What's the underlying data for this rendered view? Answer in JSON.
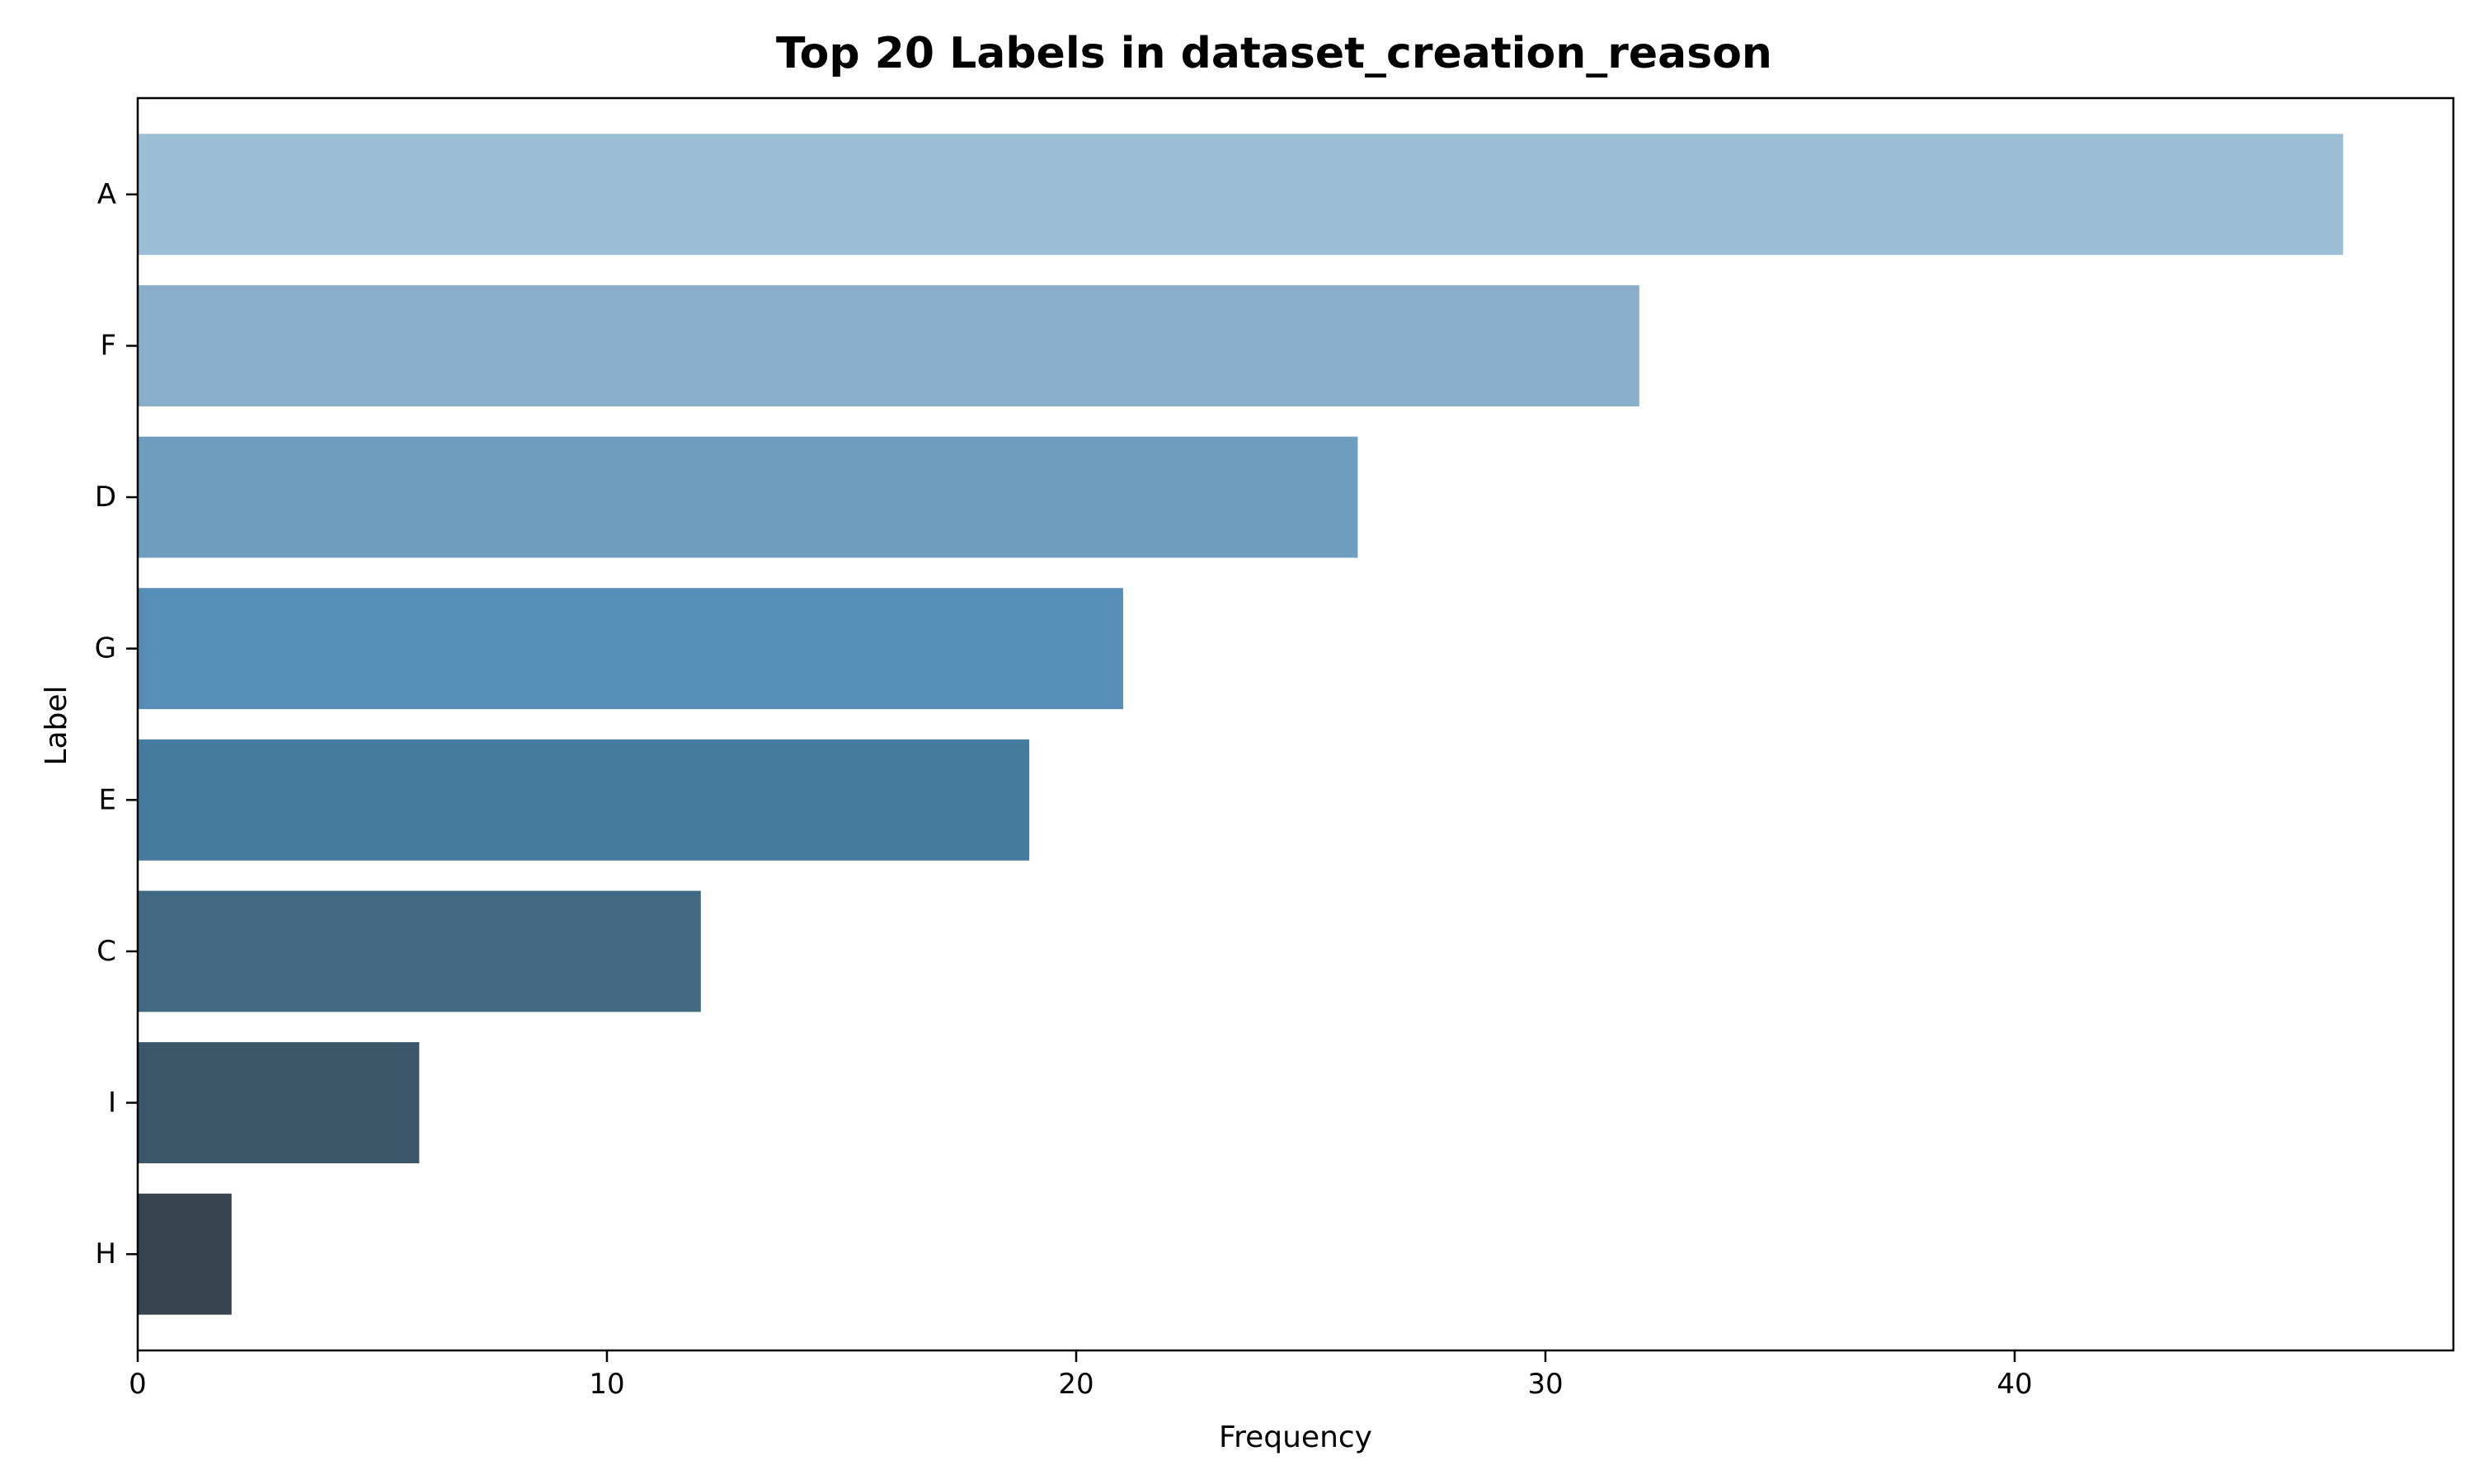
{
  "chart_data": {
    "type": "bar",
    "orientation": "horizontal",
    "title": "Top 20 Labels in dataset_creation_reason",
    "xlabel": "Frequency",
    "ylabel": "Label",
    "categories": [
      "A",
      "F",
      "D",
      "G",
      "E",
      "C",
      "I",
      "H"
    ],
    "values": [
      47,
      32,
      26,
      21,
      19,
      12,
      6,
      2
    ],
    "colors": [
      "#9dbfd5",
      "#88aec9",
      "#6e9ebf",
      "#558db7",
      "#467ba0",
      "#426882",
      "#3b5669",
      "#37444d"
    ],
    "xlim": [
      0,
      49.35
    ],
    "xticks": [
      0,
      10,
      20,
      30,
      40
    ],
    "grid": false,
    "legend": "none"
  }
}
